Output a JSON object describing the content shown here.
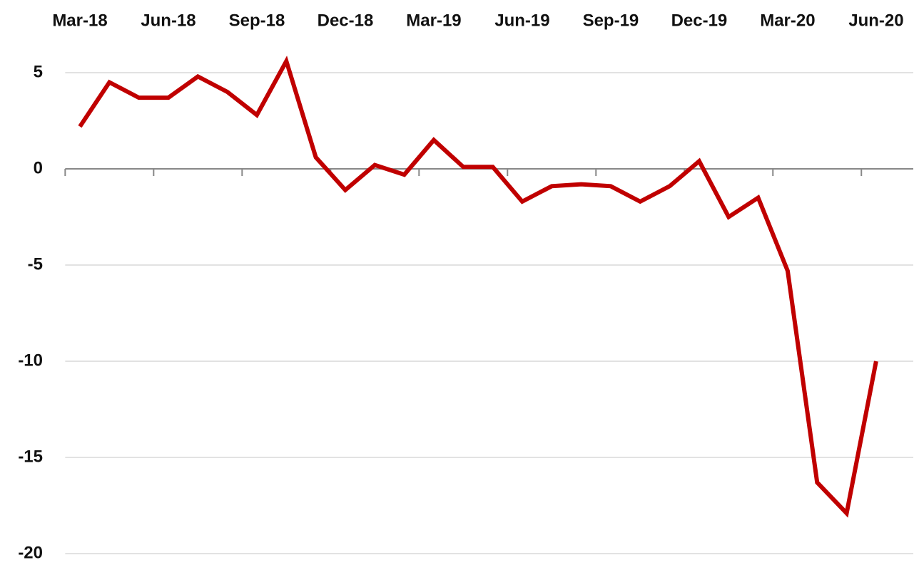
{
  "chart_data": {
    "type": "line",
    "categories": [
      "Mar-18",
      null,
      null,
      "Jun-18",
      null,
      null,
      "Sep-18",
      null,
      null,
      "Dec-18",
      null,
      null,
      "Mar-19",
      null,
      null,
      "Jun-19",
      null,
      null,
      "Sep-19",
      null,
      null,
      "Dec-19",
      null,
      null,
      "Mar-20",
      null,
      null,
      "Jun-20"
    ],
    "series": [
      {
        "color": "#c00000",
        "values": [
          2.2,
          4.5,
          3.7,
          3.7,
          4.8,
          4.0,
          2.8,
          5.6,
          0.6,
          -1.1,
          0.2,
          -0.3,
          1.5,
          0.1,
          0.1,
          -1.7,
          -0.9,
          -0.8,
          -0.9,
          -1.7,
          -0.9,
          0.4,
          -2.5,
          -1.5,
          -5.3,
          -16.3,
          -17.9,
          -10.0
        ]
      }
    ],
    "ylim": [
      -20,
      6
    ],
    "yticks": [
      -20,
      -15,
      -10,
      -5,
      0,
      5
    ],
    "grid": true
  }
}
